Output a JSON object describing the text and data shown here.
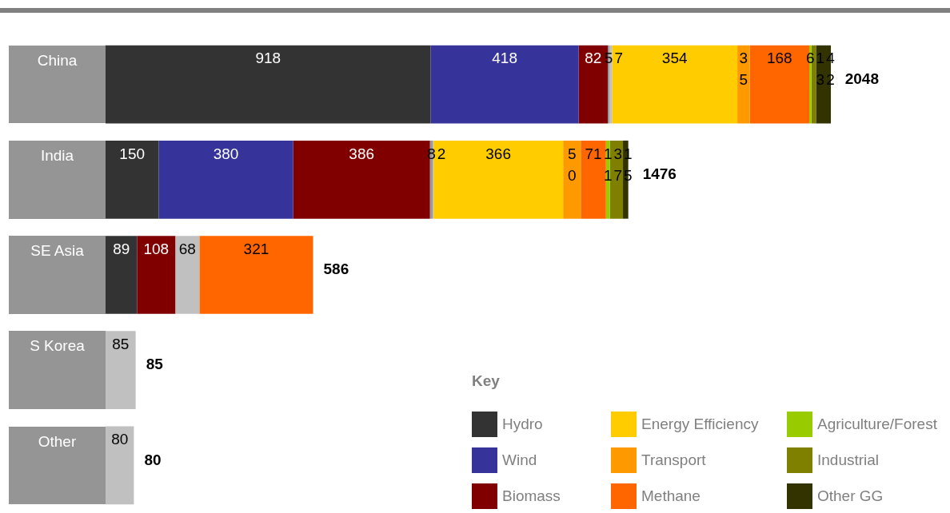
{
  "chart_data": {
    "type": "bar",
    "orientation": "horizontal",
    "stacked": true,
    "data_labels": true,
    "legend": "bottom right",
    "legend_title": "Key",
    "categories": [
      "China",
      "India",
      "SE Asia",
      "S Korea",
      "Other"
    ],
    "series": [
      {
        "name": "Hydro",
        "color": "#333333",
        "values": [
          918,
          150,
          89,
          null,
          null
        ]
      },
      {
        "name": "Wind",
        "color": "#36349b",
        "values": [
          418,
          380,
          null,
          null,
          null
        ]
      },
      {
        "name": "Biomass",
        "color": "#800000",
        "values": [
          82,
          386,
          108,
          null,
          null
        ]
      },
      {
        "color": "#999999",
        "values": [
          5,
          8,
          null,
          null,
          null
        ]
      },
      {
        "color": "#c0c0c0",
        "values": [
          7,
          2,
          68,
          85,
          80
        ]
      },
      {
        "name": "Energy Efficiency",
        "color": "#ffcc00",
        "values": [
          354,
          366,
          null,
          null,
          null
        ]
      },
      {
        "name": "Transport",
        "color": "#ff9900",
        "values": [
          35,
          50,
          null,
          null,
          null
        ]
      },
      {
        "name": "Methane",
        "color": "#ff6600",
        "values": [
          168,
          71,
          321,
          null,
          null
        ]
      },
      {
        "name": "Agriculture/Forest",
        "color": "#99cc00",
        "values": [
          6,
          11,
          null,
          null,
          null
        ]
      },
      {
        "name": "Industrial",
        "color": "#808000",
        "values": [
          13,
          37,
          null,
          null,
          null
        ]
      },
      {
        "name": "Other GG",
        "color": "#333300",
        "values": [
          42,
          15,
          null,
          null,
          null
        ]
      }
    ],
    "totals": [
      "2048",
      "1476",
      "586",
      "85",
      "80"
    ]
  }
}
